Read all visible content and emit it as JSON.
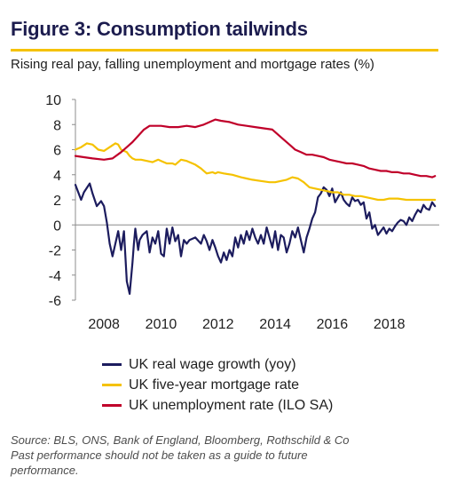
{
  "header": {
    "title": "Figure 3: Consumption tailwinds",
    "subtitle": "Rising real pay, falling unemployment and mortgage rates (%)"
  },
  "footer": {
    "source": "Source: BLS, ONS, Bank of England, Bloomberg, Rothschild & Co",
    "disclaimer_line1": "Past performance should not be taken as a guide to future",
    "disclaimer_line2": "performance."
  },
  "chart_data": {
    "type": "line",
    "title": "Figure 3: Consumption tailwinds",
    "subtitle": "Rising real pay, falling unemployment and mortgage rates (%)",
    "xlabel": "",
    "ylabel": "",
    "xlim": [
      2007.0,
      2019.75
    ],
    "ylim": [
      -6,
      10
    ],
    "yticks": [
      -6,
      -4,
      -2,
      0,
      2,
      4,
      6,
      8,
      10
    ],
    "xticks": [
      2008,
      2010,
      2012,
      2014,
      2016,
      2018
    ],
    "grid": false,
    "legend_position": "bottom",
    "series": [
      {
        "name": "UK real wage growth (yoy)",
        "color": "#1c1c5e",
        "x": [
          2007.0,
          2007.2,
          2007.3,
          2007.5,
          2007.6,
          2007.75,
          2007.9,
          2008.0,
          2008.1,
          2008.2,
          2008.3,
          2008.5,
          2008.6,
          2008.7,
          2008.8,
          2008.9,
          2009.0,
          2009.05,
          2009.1,
          2009.2,
          2009.25,
          2009.35,
          2009.5,
          2009.6,
          2009.7,
          2009.8,
          2009.9,
          2010.0,
          2010.1,
          2010.2,
          2010.3,
          2010.4,
          2010.5,
          2010.6,
          2010.7,
          2010.8,
          2010.9,
          2011.0,
          2011.2,
          2011.4,
          2011.5,
          2011.6,
          2011.7,
          2011.8,
          2011.9,
          2012.0,
          2012.1,
          2012.2,
          2012.3,
          2012.4,
          2012.5,
          2012.6,
          2012.7,
          2012.8,
          2012.9,
          2013.0,
          2013.1,
          2013.2,
          2013.3,
          2013.4,
          2013.5,
          2013.6,
          2013.7,
          2013.8,
          2013.9,
          2014.0,
          2014.1,
          2014.2,
          2014.3,
          2014.4,
          2014.5,
          2014.6,
          2014.7,
          2014.8,
          2014.9,
          2015.0,
          2015.1,
          2015.2,
          2015.3,
          2015.4,
          2015.5,
          2015.6,
          2015.7,
          2015.8,
          2015.9,
          2016.0,
          2016.1,
          2016.2,
          2016.3,
          2016.4,
          2016.5,
          2016.6,
          2016.7,
          2016.8,
          2016.9,
          2017.0,
          2017.1,
          2017.2,
          2017.3,
          2017.4,
          2017.5,
          2017.6,
          2017.7,
          2017.8,
          2017.9,
          2018.0,
          2018.1,
          2018.2,
          2018.3,
          2018.4,
          2018.5,
          2018.6,
          2018.7,
          2018.8,
          2018.9,
          2019.0,
          2019.1,
          2019.2,
          2019.3,
          2019.4,
          2019.5,
          2019.6
        ],
        "values": [
          3.2,
          2.0,
          2.6,
          3.3,
          2.5,
          1.5,
          1.9,
          1.5,
          0.2,
          -1.5,
          -2.5,
          -0.5,
          -2.0,
          -0.5,
          -4.5,
          -5.5,
          -3.0,
          -1.5,
          -0.3,
          -2.0,
          -1.2,
          -0.8,
          -0.5,
          -2.2,
          -1.0,
          -1.5,
          -0.5,
          -2.3,
          -2.5,
          -0.3,
          -1.5,
          -0.2,
          -1.3,
          -0.8,
          -2.5,
          -1.2,
          -1.5,
          -1.2,
          -1.0,
          -1.5,
          -0.8,
          -1.3,
          -2.0,
          -1.2,
          -1.8,
          -2.5,
          -3.0,
          -2.2,
          -2.8,
          -2.0,
          -2.5,
          -1.0,
          -1.8,
          -0.8,
          -1.5,
          -0.5,
          -1.2,
          -0.3,
          -1.0,
          -1.5,
          -0.8,
          -1.5,
          -0.2,
          -1.0,
          -1.8,
          -0.5,
          -2.0,
          -0.8,
          -1.0,
          -2.2,
          -1.5,
          -0.5,
          -1.0,
          -0.2,
          -1.2,
          -2.2,
          -1.0,
          -0.3,
          0.5,
          1.0,
          2.2,
          2.5,
          3.0,
          2.8,
          2.3,
          2.9,
          1.8,
          2.2,
          2.6,
          2.0,
          1.7,
          1.5,
          2.2,
          1.9,
          2.0,
          1.6,
          1.8,
          0.5,
          1.0,
          -0.3,
          0.0,
          -0.8,
          -0.5,
          -0.2,
          -0.7,
          -0.3,
          -0.5,
          -0.1,
          0.2,
          0.4,
          0.3,
          0.0,
          0.6,
          0.3,
          0.8,
          1.2,
          1.0,
          1.6,
          1.3,
          1.2,
          1.8,
          1.5
        ]
      },
      {
        "name": "UK five-year mortgage rate",
        "color": "#f5c200",
        "x": [
          2007.0,
          2007.2,
          2007.4,
          2007.6,
          2007.8,
          2008.0,
          2008.2,
          2008.4,
          2008.5,
          2008.6,
          2008.8,
          2008.9,
          2009.0,
          2009.1,
          2009.3,
          2009.5,
          2009.7,
          2009.9,
          2010.0,
          2010.2,
          2010.4,
          2010.5,
          2010.7,
          2010.9,
          2011.0,
          2011.2,
          2011.4,
          2011.6,
          2011.8,
          2011.9,
          2012.0,
          2012.2,
          2012.5,
          2012.8,
          2013.0,
          2013.2,
          2013.5,
          2013.8,
          2014.0,
          2014.2,
          2014.4,
          2014.6,
          2014.8,
          2015.0,
          2015.2,
          2015.4,
          2015.6,
          2015.8,
          2016.0,
          2016.2,
          2016.4,
          2016.6,
          2016.8,
          2017.0,
          2017.2,
          2017.4,
          2017.6,
          2017.8,
          2018.0,
          2018.3,
          2018.6,
          2018.9,
          2019.2,
          2019.5,
          2019.6
        ],
        "values": [
          6.0,
          6.2,
          6.5,
          6.4,
          6.0,
          5.9,
          6.2,
          6.5,
          6.4,
          6.0,
          5.8,
          5.5,
          5.3,
          5.2,
          5.2,
          5.1,
          5.0,
          5.2,
          5.1,
          4.9,
          4.9,
          4.8,
          5.2,
          5.1,
          5.0,
          4.8,
          4.5,
          4.1,
          4.2,
          4.1,
          4.2,
          4.1,
          4.0,
          3.8,
          3.7,
          3.6,
          3.5,
          3.4,
          3.4,
          3.5,
          3.6,
          3.8,
          3.7,
          3.4,
          3.0,
          2.9,
          2.8,
          2.7,
          2.6,
          2.6,
          2.4,
          2.4,
          2.3,
          2.3,
          2.2,
          2.1,
          2.0,
          2.0,
          2.1,
          2.1,
          2.0,
          2.0,
          2.0,
          2.0,
          2.0
        ]
      },
      {
        "name": "UK unemployment rate (ILO SA)",
        "color": "#c0002a",
        "x": [
          2007.0,
          2007.3,
          2007.6,
          2008.0,
          2008.3,
          2008.6,
          2008.8,
          2009.0,
          2009.2,
          2009.4,
          2009.6,
          2009.8,
          2010.0,
          2010.3,
          2010.6,
          2010.9,
          2011.2,
          2011.5,
          2011.8,
          2011.9,
          2012.1,
          2012.4,
          2012.7,
          2013.0,
          2013.3,
          2013.6,
          2013.9,
          2014.1,
          2014.3,
          2014.5,
          2014.7,
          2014.9,
          2015.1,
          2015.3,
          2015.5,
          2015.7,
          2015.9,
          2016.1,
          2016.3,
          2016.5,
          2016.7,
          2016.9,
          2017.1,
          2017.3,
          2017.5,
          2017.7,
          2017.9,
          2018.1,
          2018.3,
          2018.5,
          2018.7,
          2018.9,
          2019.1,
          2019.3,
          2019.5,
          2019.6
        ],
        "values": [
          5.5,
          5.4,
          5.3,
          5.2,
          5.3,
          5.8,
          6.2,
          6.6,
          7.1,
          7.6,
          7.9,
          7.9,
          7.9,
          7.8,
          7.8,
          7.9,
          7.8,
          8.0,
          8.3,
          8.4,
          8.3,
          8.2,
          8.0,
          7.9,
          7.8,
          7.7,
          7.6,
          7.2,
          6.8,
          6.4,
          6.0,
          5.8,
          5.6,
          5.6,
          5.5,
          5.4,
          5.2,
          5.1,
          5.0,
          4.9,
          4.9,
          4.8,
          4.7,
          4.5,
          4.4,
          4.3,
          4.3,
          4.2,
          4.2,
          4.1,
          4.1,
          4.0,
          3.9,
          3.9,
          3.8,
          3.9
        ]
      }
    ]
  }
}
